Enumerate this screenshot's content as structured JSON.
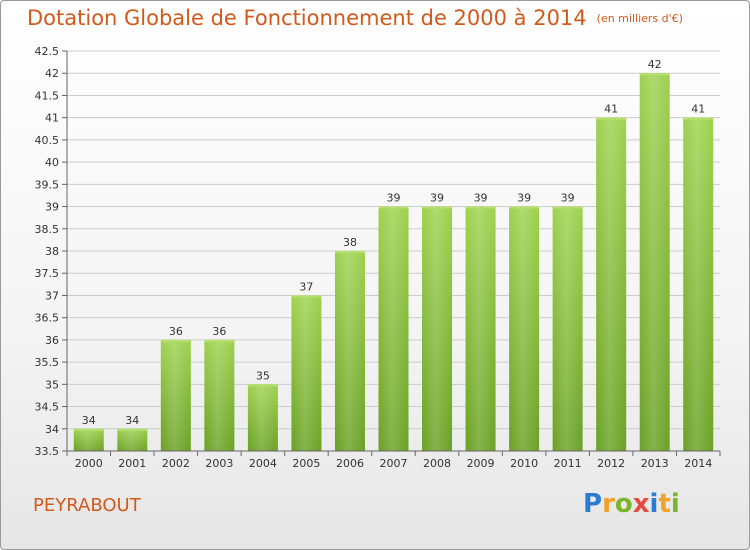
{
  "title": "Dotation Globale de Fonctionnement de 2000 à 2014",
  "unit_note": "(en milliers d'€)",
  "commune": "PEYRABOUT",
  "logo": {
    "letters": [
      "P",
      "r",
      "o",
      "x",
      "i",
      "t",
      "i"
    ],
    "colors": [
      "#2b7bd1",
      "#f0a22a",
      "#78b52b",
      "#e44c3d",
      "#2b7bd1",
      "#f0a22a",
      "#78b52b"
    ]
  },
  "colors": {
    "bar": "#8ac43f",
    "title": "#d3591b",
    "grid": "#cccccc"
  },
  "chart_data": {
    "type": "bar",
    "categories": [
      "2000",
      "2001",
      "2002",
      "2003",
      "2004",
      "2005",
      "2006",
      "2007",
      "2008",
      "2009",
      "2010",
      "2011",
      "2012",
      "2013",
      "2014"
    ],
    "values": [
      34,
      34,
      36,
      36,
      35,
      37,
      38,
      39,
      39,
      39,
      39,
      39,
      41,
      42,
      41
    ],
    "value_labels": [
      "34",
      "34",
      "36",
      "36",
      "35",
      "37",
      "38",
      "39",
      "39",
      "39",
      "39",
      "39",
      "41",
      "42",
      "41"
    ],
    "yticks": [
      "33.5",
      "34",
      "34.5",
      "35",
      "35.5",
      "36",
      "36.5",
      "37",
      "37.5",
      "38",
      "38.5",
      "39",
      "39.5",
      "40",
      "40.5",
      "41",
      "41.5",
      "42",
      "42.5"
    ],
    "ylim": [
      33.5,
      42.5
    ],
    "grid": "horizontal",
    "legend": "none"
  }
}
